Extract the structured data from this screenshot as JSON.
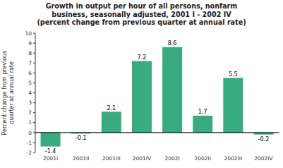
{
  "chart_data": {
    "type": "bar",
    "title": "Growth in output per hour of all persons, nonfarm\nbusiness, seasonally adjusted, 2001 I - 2002 IV\n(percent change from previous quarter at annual rate)",
    "y_label": "Percent change from previous\nquarter at annual rate",
    "categories": [
      "2001I",
      "2001II",
      "2001III",
      "2001IV",
      "2002I",
      "2002II",
      "2002III",
      "2002IV"
    ],
    "values": [
      -1.4,
      -0.1,
      2.1,
      7.2,
      8.6,
      1.7,
      5.5,
      -0.2
    ],
    "color": "#3aaa80",
    "ylim": [
      -2,
      10
    ],
    "yticks": [
      -2,
      -1,
      0,
      1,
      2,
      3,
      4,
      5,
      6,
      7,
      8,
      9,
      10
    ],
    "grid": false,
    "data_labels": true
  }
}
